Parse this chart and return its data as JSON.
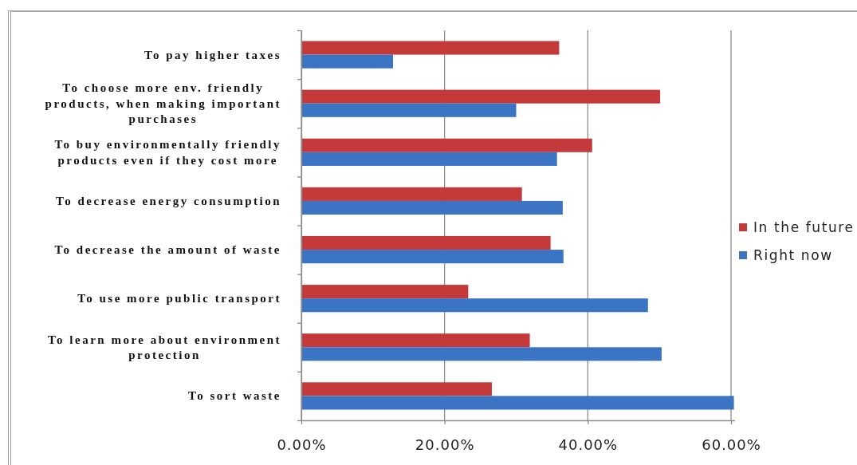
{
  "chart_data": {
    "type": "bar",
    "orientation": "horizontal",
    "categories": [
      "To pay higher taxes",
      "To choose more env. friendly products, when making important purchases",
      "To buy environmentally friendly products even if they cost more",
      "To decrease energy consumption",
      "To decrease the amount of waste",
      "To use more public transport",
      "To learn more about environment protection",
      "To sort waste"
    ],
    "series": [
      {
        "name": "In the future",
        "color": "#c43a3a",
        "values": [
          36.0,
          50.1,
          40.6,
          30.8,
          34.8,
          23.3,
          31.9,
          26.6
        ]
      },
      {
        "name": "Right now",
        "color": "#3b74c2",
        "values": [
          12.8,
          30.0,
          35.7,
          36.5,
          36.6,
          48.4,
          50.3,
          60.4
        ]
      }
    ],
    "xlim": [
      0,
      60.5
    ],
    "xticks": [
      {
        "value": 0,
        "label": "0.00%"
      },
      {
        "value": 20,
        "label": "20.00%"
      },
      {
        "value": 40,
        "label": "40.00%"
      },
      {
        "value": 60,
        "label": "60.00%"
      }
    ],
    "grid": "x",
    "legend": "right"
  }
}
